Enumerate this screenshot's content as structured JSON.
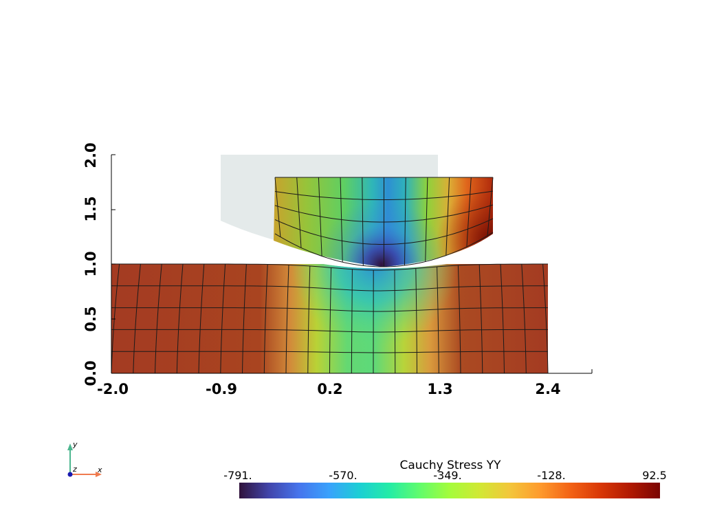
{
  "viewport": {
    "x_axis": {
      "tick_labels": [
        "-2.0",
        "-0.9",
        "0.2",
        "1.3",
        "2.4"
      ],
      "range": [
        -2.0,
        3.0
      ]
    },
    "y_axis": {
      "tick_labels": [
        "0.0",
        "0.5",
        "1.0",
        "1.5",
        "2.0"
      ],
      "range": [
        0.0,
        2.0
      ]
    },
    "field": "Cauchy Stress YY",
    "colormap": [
      "#30123b",
      "#4145ab",
      "#4675ed",
      "#39a2fc",
      "#1bcfd4",
      "#24eca6",
      "#61fc6c",
      "#a4fc3b",
      "#d1e834",
      "#f3c63a",
      "#fe9b2d",
      "#f36315",
      "#d93806",
      "#b11901",
      "#7a0402"
    ],
    "background": "#ffffff",
    "rigid_ghost_color": "#e3e9e9"
  },
  "colorbar": {
    "title": "Cauchy Stress YY",
    "labels": [
      "-791.",
      "-570.",
      "-349.",
      "-128.",
      "92.5"
    ]
  },
  "orientation_axes": {
    "x": "x",
    "y": "y",
    "z": "z",
    "x_color": "#f07b4f",
    "y_color": "#4cb68f",
    "z_color": "#1a1ab0"
  }
}
